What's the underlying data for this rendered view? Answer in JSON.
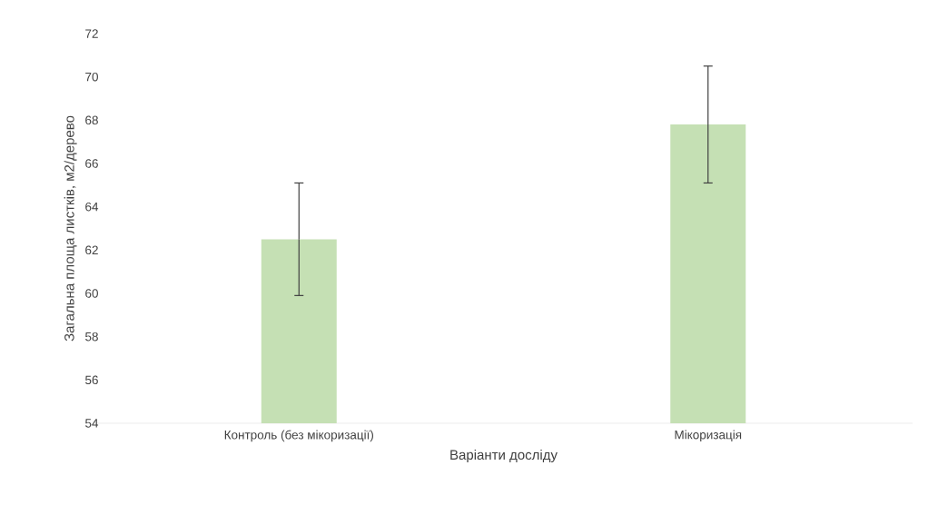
{
  "chart_data": {
    "type": "bar",
    "xlabel": "Варіанти досліду",
    "ylabel": "Загальна площа листків, м2/дерево",
    "categories": [
      "Контроль (без мікоризації)",
      "Мікоризація"
    ],
    "values": [
      62.5,
      67.8
    ],
    "errors": [
      2.6,
      2.7
    ],
    "color": "#c5e0b4",
    "ylim": [
      54,
      72
    ],
    "yticks": [
      54,
      56,
      58,
      60,
      62,
      64,
      66,
      68,
      70,
      72
    ]
  }
}
